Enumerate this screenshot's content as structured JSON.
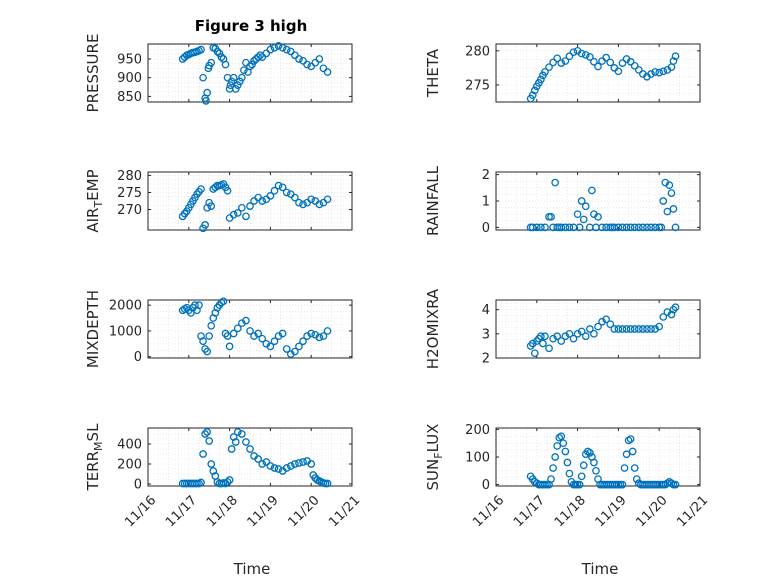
{
  "figure": {
    "title": "Figure 3 high",
    "marker_color": "#0072BD",
    "x_axis_label": "Time",
    "x_tick_labels": [
      "11/16",
      "11/17",
      "11/18",
      "11/19",
      "11/20",
      "11/21"
    ]
  },
  "chart_data": [
    {
      "type": "scatter",
      "name": "pressure",
      "ylabel": "PRESSURE",
      "xlim": [
        16,
        21
      ],
      "ylim": [
        835,
        990
      ],
      "yticks": [
        850,
        900,
        950
      ],
      "ytick_labels": [
        "850",
        "900",
        "950"
      ],
      "grid": true,
      "title": "Figure 3 high",
      "x": [
        16.85,
        16.9,
        16.95,
        17.0,
        17.05,
        17.1,
        17.15,
        17.2,
        17.25,
        17.3,
        17.35,
        17.4,
        17.42,
        17.45,
        17.48,
        17.5,
        17.55,
        17.6,
        17.65,
        17.7,
        17.75,
        17.8,
        17.85,
        17.9,
        17.95,
        18.0,
        18.02,
        18.05,
        18.1,
        18.15,
        18.2,
        18.25,
        18.3,
        18.35,
        18.4,
        18.45,
        18.5,
        18.55,
        18.6,
        18.65,
        18.7,
        18.75,
        18.8,
        18.9,
        19.0,
        19.1,
        19.2,
        19.3,
        19.4,
        19.5,
        19.6,
        19.7,
        19.8,
        19.9,
        20.0,
        20.1,
        20.2,
        20.3,
        20.4
      ],
      "y": [
        950,
        955,
        960,
        962,
        965,
        967,
        968,
        970,
        972,
        975,
        900,
        845,
        838,
        860,
        925,
        932,
        940,
        980,
        978,
        970,
        965,
        955,
        950,
        935,
        900,
        870,
        880,
        890,
        900,
        870,
        880,
        890,
        900,
        920,
        940,
        915,
        930,
        935,
        945,
        950,
        955,
        960,
        955,
        965,
        975,
        980,
        985,
        980,
        975,
        970,
        960,
        950,
        945,
        935,
        930,
        940,
        950,
        925,
        915
      ]
    },
    {
      "type": "scatter",
      "name": "theta",
      "ylabel": "THETA",
      "xlim": [
        16,
        21
      ],
      "ylim": [
        272.5,
        281
      ],
      "yticks": [
        275,
        280
      ],
      "ytick_labels": [
        "275",
        "280"
      ],
      "grid": true,
      "x": [
        16.85,
        16.9,
        16.95,
        17.0,
        17.05,
        17.1,
        17.15,
        17.2,
        17.3,
        17.4,
        17.5,
        17.6,
        17.7,
        17.8,
        17.9,
        18.0,
        18.1,
        18.2,
        18.3,
        18.4,
        18.5,
        18.6,
        18.7,
        18.8,
        18.9,
        19.0,
        19.1,
        19.2,
        19.3,
        19.4,
        19.5,
        19.6,
        19.7,
        19.8,
        19.9,
        20.0,
        20.1,
        20.2,
        20.3,
        20.35,
        20.4
      ],
      "y": [
        273.0,
        273.5,
        274.2,
        274.8,
        275.3,
        275.8,
        276.4,
        276.9,
        277.6,
        278.3,
        278.9,
        278.2,
        278.5,
        279.2,
        279.8,
        280.0,
        279.6,
        279.4,
        279.1,
        278.4,
        277.7,
        278.5,
        279.0,
        278.3,
        277.5,
        277.0,
        278.2,
        278.8,
        278.4,
        277.8,
        277.2,
        276.6,
        276.2,
        276.6,
        276.9,
        276.8,
        277.0,
        277.2,
        277.6,
        278.5,
        279.2
      ]
    },
    {
      "type": "scatter",
      "name": "air_temp",
      "ylabel": "AIR_TEMP",
      "xlim": [
        16,
        21
      ],
      "ylim": [
        264,
        281
      ],
      "yticks": [
        270,
        275,
        280
      ],
      "ytick_labels": [
        "270",
        "275",
        "280"
      ],
      "grid": true,
      "x": [
        16.85,
        16.9,
        16.95,
        17.0,
        17.05,
        17.1,
        17.15,
        17.2,
        17.25,
        17.3,
        17.35,
        17.4,
        17.45,
        17.5,
        17.55,
        17.6,
        17.65,
        17.7,
        17.75,
        17.8,
        17.85,
        17.9,
        17.95,
        18.0,
        18.1,
        18.2,
        18.3,
        18.4,
        18.5,
        18.6,
        18.7,
        18.8,
        18.9,
        19.0,
        19.1,
        19.2,
        19.3,
        19.4,
        19.5,
        19.6,
        19.7,
        19.8,
        19.9,
        20.0,
        20.1,
        20.2,
        20.3,
        20.4
      ],
      "y": [
        268.0,
        268.8,
        269.5,
        270.5,
        271.5,
        272.5,
        273.5,
        274.5,
        275.2,
        276.0,
        264.5,
        265.5,
        270.5,
        272.0,
        271.0,
        276.0,
        276.5,
        277.0,
        277.0,
        277.2,
        277.5,
        276.5,
        275.5,
        267.5,
        268.5,
        269.0,
        270.5,
        268.0,
        271.0,
        272.5,
        273.5,
        272.5,
        273.0,
        274.0,
        275.5,
        277.0,
        276.5,
        275.0,
        274.5,
        273.5,
        272.0,
        271.5,
        272.0,
        273.0,
        272.5,
        271.5,
        272.0,
        273.0
      ]
    },
    {
      "type": "scatter",
      "name": "rainfall",
      "ylabel": "RAINFALL",
      "xlim": [
        16,
        21
      ],
      "ylim": [
        -0.1,
        2.1
      ],
      "yticks": [
        0,
        1,
        2
      ],
      "ytick_labels": [
        "0",
        "1",
        "2"
      ],
      "grid": true,
      "x": [
        16.85,
        16.9,
        17.0,
        17.1,
        17.2,
        17.3,
        17.35,
        17.4,
        17.45,
        17.5,
        17.55,
        17.6,
        17.7,
        17.8,
        17.9,
        18.0,
        18.05,
        18.1,
        18.15,
        18.2,
        18.3,
        18.35,
        18.4,
        18.45,
        18.5,
        18.6,
        18.7,
        18.8,
        18.85,
        18.9,
        19.0,
        19.1,
        19.2,
        19.3,
        19.4,
        19.5,
        19.6,
        19.7,
        19.8,
        19.9,
        20.0,
        20.05,
        20.1,
        20.15,
        20.2,
        20.25,
        20.3,
        20.35,
        20.4
      ],
      "y": [
        0,
        0,
        0,
        0,
        0,
        0.4,
        0.4,
        0,
        1.7,
        0,
        0,
        0,
        0,
        0,
        0,
        0.5,
        0,
        1.0,
        0.3,
        0.8,
        0,
        1.4,
        0.5,
        0,
        0.4,
        0,
        0,
        0,
        0,
        0,
        0,
        0,
        0,
        0,
        0,
        0,
        0,
        0,
        0,
        0,
        0,
        0,
        1.0,
        1.7,
        0.6,
        1.6,
        1.3,
        0.7,
        0
      ]
    },
    {
      "type": "scatter",
      "name": "mixdepth",
      "ylabel": "MIXDEPTH",
      "xlim": [
        16,
        21
      ],
      "ylim": [
        -50,
        2200
      ],
      "yticks": [
        0,
        1000,
        2000
      ],
      "ytick_labels": [
        "0",
        "1000",
        "2000"
      ],
      "grid": true,
      "x": [
        16.85,
        16.9,
        16.95,
        17.0,
        17.05,
        17.1,
        17.15,
        17.2,
        17.25,
        17.3,
        17.35,
        17.4,
        17.45,
        17.5,
        17.55,
        17.6,
        17.65,
        17.7,
        17.75,
        17.8,
        17.85,
        17.9,
        17.95,
        18.0,
        18.1,
        18.2,
        18.3,
        18.4,
        18.5,
        18.6,
        18.7,
        18.8,
        18.9,
        19.0,
        19.1,
        19.2,
        19.3,
        19.4,
        19.5,
        19.6,
        19.7,
        19.8,
        19.9,
        20.0,
        20.1,
        20.2,
        20.3,
        20.4
      ],
      "y": [
        1800,
        1850,
        1900,
        1800,
        1700,
        1900,
        2000,
        1800,
        2000,
        800,
        600,
        300,
        200,
        800,
        1200,
        1500,
        1700,
        1900,
        2000,
        2100,
        2150,
        900,
        800,
        400,
        900,
        1100,
        1300,
        1400,
        1000,
        800,
        900,
        700,
        500,
        400,
        600,
        800,
        900,
        300,
        100,
        200,
        400,
        600,
        800,
        900,
        850,
        750,
        800,
        1000
      ]
    },
    {
      "type": "scatter",
      "name": "h2omixra",
      "ylabel": "H2OMIXRA",
      "xlim": [
        16,
        21
      ],
      "ylim": [
        2,
        4.4
      ],
      "yticks": [
        2,
        3,
        4
      ],
      "ytick_labels": [
        "2",
        "3",
        "4"
      ],
      "grid": true,
      "x": [
        16.85,
        16.9,
        16.95,
        17.0,
        17.05,
        17.1,
        17.15,
        17.2,
        17.3,
        17.4,
        17.5,
        17.6,
        17.7,
        17.8,
        17.9,
        18.0,
        18.1,
        18.2,
        18.3,
        18.4,
        18.5,
        18.6,
        18.7,
        18.8,
        18.9,
        19.0,
        19.1,
        19.2,
        19.3,
        19.4,
        19.5,
        19.6,
        19.7,
        19.8,
        19.9,
        20.0,
        20.1,
        20.2,
        20.3,
        20.35,
        20.4
      ],
      "y": [
        2.5,
        2.6,
        2.2,
        2.7,
        2.8,
        2.9,
        2.6,
        2.9,
        2.4,
        2.8,
        2.9,
        2.7,
        2.9,
        3.0,
        2.8,
        3.0,
        3.1,
        2.9,
        3.2,
        3.0,
        3.3,
        3.5,
        3.6,
        3.4,
        3.2,
        3.2,
        3.2,
        3.2,
        3.2,
        3.2,
        3.2,
        3.2,
        3.2,
        3.2,
        3.2,
        3.3,
        3.7,
        3.9,
        3.8,
        4.0,
        4.1
      ]
    },
    {
      "type": "scatter",
      "name": "terr_msl",
      "ylabel": "TERR_MSL",
      "xlim": [
        16,
        21
      ],
      "ylim": [
        -20,
        560
      ],
      "yticks": [
        0,
        200,
        400
      ],
      "ytick_labels": [
        "0",
        "200",
        "400"
      ],
      "grid": true,
      "x": [
        16.85,
        16.9,
        16.95,
        17.0,
        17.05,
        17.1,
        17.15,
        17.2,
        17.25,
        17.3,
        17.35,
        17.4,
        17.45,
        17.5,
        17.55,
        17.6,
        17.65,
        17.7,
        17.75,
        17.8,
        17.85,
        17.9,
        17.95,
        18.0,
        18.05,
        18.1,
        18.15,
        18.2,
        18.3,
        18.4,
        18.5,
        18.6,
        18.7,
        18.8,
        18.9,
        19.0,
        19.1,
        19.2,
        19.3,
        19.4,
        19.5,
        19.6,
        19.7,
        19.8,
        19.9,
        20.0,
        20.05,
        20.1,
        20.15,
        20.2,
        20.25,
        20.3,
        20.35,
        20.4
      ],
      "y": [
        5,
        5,
        5,
        5,
        5,
        5,
        5,
        5,
        5,
        15,
        300,
        500,
        520,
        430,
        200,
        130,
        80,
        20,
        5,
        5,
        10,
        5,
        20,
        40,
        350,
        470,
        420,
        520,
        500,
        420,
        350,
        280,
        250,
        200,
        220,
        180,
        160,
        150,
        130,
        160,
        180,
        200,
        210,
        220,
        230,
        200,
        90,
        60,
        40,
        30,
        20,
        10,
        5,
        5
      ]
    },
    {
      "type": "scatter",
      "name": "sun_flux",
      "ylabel": "SUN_FLUX",
      "xlim": [
        16,
        21
      ],
      "ylim": [
        -5,
        205
      ],
      "yticks": [
        0,
        100,
        200
      ],
      "ytick_labels": [
        "0",
        "100",
        "200"
      ],
      "grid": true,
      "x": [
        16.85,
        16.9,
        16.95,
        17.0,
        17.05,
        17.1,
        17.15,
        17.2,
        17.25,
        17.3,
        17.35,
        17.4,
        17.45,
        17.5,
        17.55,
        17.6,
        17.65,
        17.7,
        17.75,
        17.8,
        17.85,
        17.9,
        17.95,
        18.0,
        18.05,
        18.1,
        18.15,
        18.2,
        18.25,
        18.3,
        18.35,
        18.4,
        18.45,
        18.5,
        18.55,
        18.6,
        18.65,
        18.7,
        18.75,
        18.8,
        18.85,
        18.9,
        18.95,
        19.0,
        19.05,
        19.1,
        19.15,
        19.2,
        19.25,
        19.3,
        19.35,
        19.4,
        19.45,
        19.5,
        19.55,
        19.6,
        19.65,
        19.7,
        19.75,
        19.8,
        19.85,
        19.9,
        19.95,
        20.0,
        20.05,
        20.1,
        20.15,
        20.2,
        20.25,
        20.3,
        20.35,
        20.4
      ],
      "y": [
        30,
        20,
        10,
        5,
        0,
        0,
        0,
        0,
        0,
        0,
        20,
        60,
        100,
        140,
        170,
        175,
        150,
        120,
        80,
        40,
        10,
        0,
        0,
        0,
        0,
        30,
        70,
        110,
        120,
        115,
        100,
        80,
        50,
        20,
        0,
        0,
        0,
        0,
        0,
        0,
        0,
        0,
        0,
        0,
        0,
        0,
        60,
        110,
        160,
        165,
        120,
        60,
        20,
        5,
        0,
        0,
        0,
        0,
        0,
        0,
        0,
        0,
        0,
        0,
        0,
        0,
        0,
        5,
        10,
        5,
        0,
        0
      ]
    }
  ]
}
